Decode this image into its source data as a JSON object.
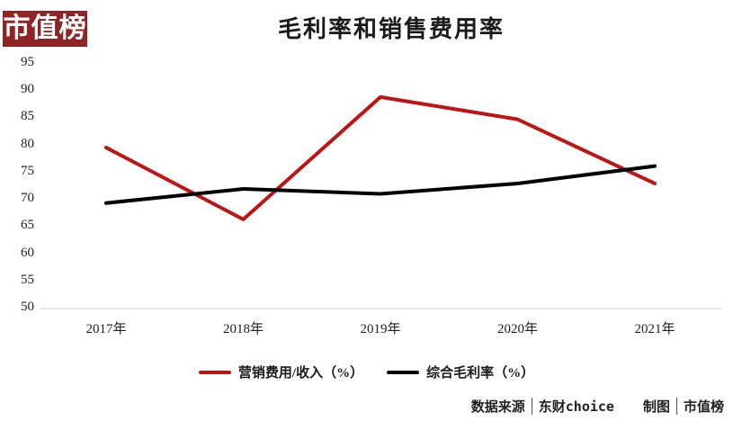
{
  "logo": {
    "text": "市值榜",
    "bg_color": "#8e2424",
    "text_color": "#ffffff"
  },
  "chart_data": {
    "type": "line",
    "title": "毛利率和销售费用率",
    "categories": [
      "2017年",
      "2018年",
      "2019年",
      "2020年",
      "2021年"
    ],
    "series": [
      {
        "name": "营销费用/收入（%）",
        "color": "#c01414",
        "values": [
          79.6,
          66.4,
          88.9,
          84.8,
          73.0
        ]
      },
      {
        "name": "综合毛利率（%）",
        "color": "#000000",
        "values": [
          69.4,
          72.0,
          71.1,
          73.0,
          76.2
        ]
      }
    ],
    "ylim": [
      50,
      95
    ],
    "yticks": [
      95,
      90,
      85,
      80,
      75,
      70,
      65,
      60,
      55,
      50
    ],
    "grid": false,
    "legend_position": "bottom",
    "axis_line_color": "#d9d9d9"
  },
  "footer": {
    "source_label": "数据来源",
    "source_value": "东财choice",
    "credit_label": "制图",
    "credit_value": "市值榜"
  }
}
